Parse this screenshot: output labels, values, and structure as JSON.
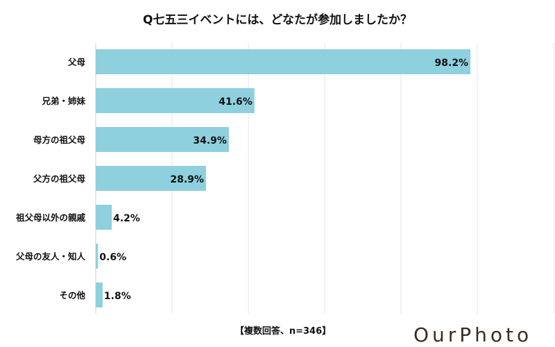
{
  "chart_data": {
    "type": "bar",
    "orientation": "horizontal",
    "title": "Q七五三イベントには、どなたが参加しましたか？",
    "categories": [
      "父母",
      "兄弟・姉妹",
      "母方の祖父母",
      "父方の祖父母",
      "祖父母以外の親戚",
      "父母の友人・知人",
      "その他"
    ],
    "values": [
      98.2,
      41.6,
      34.9,
      28.9,
      4.2,
      0.6,
      1.8
    ],
    "value_labels": [
      "98.2%",
      "41.6%",
      "34.9%",
      "28.9%",
      "4.2%",
      "0.6%",
      "1.8%"
    ],
    "xlim": [
      0,
      120
    ],
    "grid_step": 20,
    "grid": true,
    "bar_color": "#8ED0DE",
    "note": "【複数回答、n=346】"
  },
  "logo": "OurPhoto",
  "logo_color": "#3d2b1f"
}
